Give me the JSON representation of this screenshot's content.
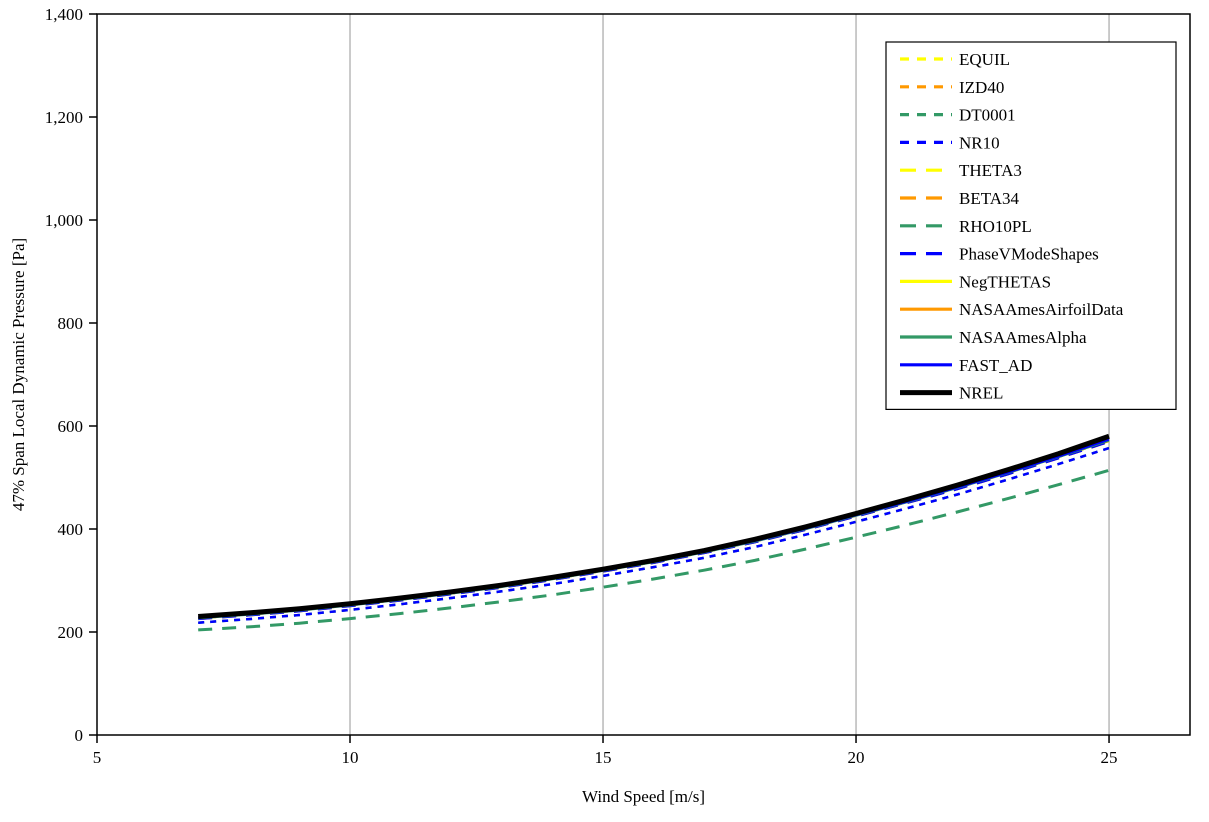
{
  "chart_data": {
    "type": "line",
    "title": "",
    "xlabel": "Wind Speed [m/s]",
    "ylabel": "47% Span Local Dynamic Pressure [Pa]",
    "xlim": [
      5,
      26.6
    ],
    "ylim": [
      0,
      1400
    ],
    "x_ticks": [
      5,
      10,
      15,
      20,
      25
    ],
    "x_tick_labels": [
      "5",
      "10",
      "15",
      "20",
      "25"
    ],
    "y_ticks": [
      0,
      200,
      400,
      600,
      800,
      1000,
      1200,
      1400
    ],
    "y_tick_labels": [
      "0",
      "200",
      "400",
      "600",
      "800",
      "1,000",
      "1,200",
      "1,400"
    ],
    "grid_x": [
      10,
      15,
      20,
      25
    ],
    "grid_color": "#969696",
    "border_color": "#000000",
    "legend_position": "top-right",
    "x": [
      7,
      8,
      9,
      10,
      11,
      12,
      13,
      14,
      15,
      16,
      17,
      18,
      19,
      20,
      21,
      22,
      23,
      24,
      25
    ],
    "series": [
      {
        "name": "EQUIL",
        "color": "#FFFF00",
        "dash": "dot",
        "width": 2.5,
        "values": [
          227,
          234,
          242,
          252,
          263,
          275,
          288,
          303,
          319,
          336,
          355,
          376,
          400,
          426,
          452,
          480,
          509,
          540,
          571
        ]
      },
      {
        "name": "IZD40",
        "color": "#FF9900",
        "dash": "dot",
        "width": 2.5,
        "values": [
          227,
          234,
          242,
          252,
          263,
          275,
          288,
          303,
          319,
          336,
          355,
          376,
          400,
          426,
          452,
          480,
          509,
          540,
          571
        ]
      },
      {
        "name": "DT0001",
        "color": "#339966",
        "dash": "dot",
        "width": 2.5,
        "values": [
          218,
          225,
          233,
          243,
          254,
          266,
          279,
          293,
          309,
          326,
          344,
          365,
          389,
          414,
          440,
          467,
          496,
          526,
          557
        ]
      },
      {
        "name": "NR10",
        "color": "#0000FF",
        "dash": "dot",
        "width": 2.5,
        "values": [
          218,
          225,
          233,
          243,
          254,
          266,
          279,
          293,
          309,
          326,
          344,
          365,
          389,
          414,
          440,
          467,
          496,
          526,
          557
        ]
      },
      {
        "name": "THETA3",
        "color": "#FFFF00",
        "dash": "dash",
        "width": 3,
        "values": [
          226,
          233,
          241,
          251,
          262,
          274,
          287,
          302,
          318,
          335,
          354,
          375,
          399,
          425,
          451,
          478,
          507,
          538,
          570
        ]
      },
      {
        "name": "BETA34",
        "color": "#FF9900",
        "dash": "dash",
        "width": 3,
        "values": [
          226,
          233,
          241,
          251,
          262,
          274,
          287,
          302,
          318,
          335,
          354,
          375,
          399,
          425,
          451,
          478,
          507,
          538,
          570
        ]
      },
      {
        "name": "RHO10PL",
        "color": "#339966",
        "dash": "dash",
        "width": 3,
        "values": [
          204,
          210,
          217,
          226,
          236,
          247,
          259,
          272,
          287,
          303,
          320,
          339,
          361,
          384,
          408,
          433,
          459,
          486,
          514
        ]
      },
      {
        "name": "PhaseVModeShapes",
        "color": "#0000FF",
        "dash": "dash",
        "width": 3,
        "values": [
          226,
          233,
          241,
          251,
          262,
          274,
          287,
          302,
          318,
          335,
          354,
          375,
          399,
          425,
          451,
          478,
          507,
          538,
          570
        ]
      },
      {
        "name": "NegTHETAS",
        "color": "#FFFF00",
        "dash": "solid",
        "width": 2.5,
        "values": [
          228,
          235,
          243,
          253,
          264,
          276,
          289,
          304,
          320,
          337,
          356,
          377,
          401,
          427,
          453,
          481,
          510,
          541,
          573
        ]
      },
      {
        "name": "NASAAmesAirfoilData",
        "color": "#FF9900",
        "dash": "solid",
        "width": 2.5,
        "values": [
          228,
          235,
          243,
          253,
          264,
          276,
          289,
          304,
          320,
          337,
          356,
          377,
          401,
          427,
          453,
          481,
          510,
          541,
          573
        ]
      },
      {
        "name": "NASAAmesAlpha",
        "color": "#339966",
        "dash": "solid",
        "width": 2.5,
        "values": [
          227,
          234,
          242,
          252,
          263,
          275,
          288,
          303,
          319,
          336,
          355,
          376,
          400,
          426,
          452,
          480,
          509,
          540,
          572
        ]
      },
      {
        "name": "FAST_AD",
        "color": "#0000FF",
        "dash": "solid",
        "width": 2.5,
        "values": [
          228,
          235,
          243,
          253,
          264,
          276,
          289,
          304,
          320,
          337,
          356,
          377,
          401,
          427,
          453,
          481,
          510,
          541,
          574
        ]
      },
      {
        "name": "NREL",
        "color": "#000000",
        "dash": "solid",
        "width": 5,
        "values": [
          230,
          237,
          245,
          255,
          266,
          278,
          291,
          306,
          322,
          339,
          358,
          380,
          404,
          430,
          457,
          485,
          515,
          546,
          580
        ]
      }
    ]
  }
}
